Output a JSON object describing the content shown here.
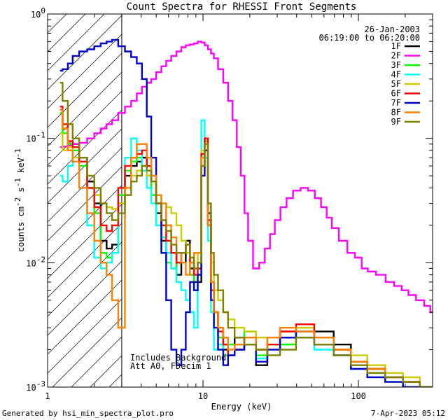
{
  "chart_data": {
    "type": "line",
    "title": "Count Spectra for RHESSI Front Segments",
    "xlabel": "Energy (keV)",
    "ylabel": "counts cm",
    "ylabel_sup1": "-2",
    "ylabel_mid": " s",
    "ylabel_sup2": "-1",
    "ylabel_end": " keV",
    "ylabel_sup3": "-1",
    "x_scale": "log",
    "y_scale": "log",
    "xlim": [
      1.0,
      300.0
    ],
    "ylim": [
      0.001,
      1.0
    ],
    "x_ticks": [
      {
        "value": 1,
        "label": "1"
      },
      {
        "value": 10,
        "label": "10"
      },
      {
        "value": 100,
        "label": "100"
      }
    ],
    "y_ticks": [
      {
        "value": 1.0,
        "base": "10",
        "exp": "0"
      },
      {
        "value": 0.1,
        "base": "10",
        "exp": "-1"
      },
      {
        "value": 0.01,
        "base": "10",
        "exp": "-2"
      },
      {
        "value": 0.001,
        "base": "10",
        "exp": "-3"
      }
    ],
    "hatched_region": {
      "x_from": 1.0,
      "x_to": 3.0
    },
    "annotation_date": "26-Jan-2003",
    "annotation_time": "06:19:00 to 06:20:00",
    "notes": [
      "Includes Background",
      "Att A0, FDecim 1"
    ],
    "footer_left": "Generated by hsi_min_spectra_plot.pro",
    "footer_right": "7-Apr-2023 05:12",
    "series": [
      {
        "name": "1F",
        "color": "#000000",
        "x": [
          1.2,
          1.3,
          1.4,
          1.5,
          1.7,
          1.9,
          2.1,
          2.3,
          2.5,
          2.7,
          3.0,
          3.3,
          3.6,
          3.9,
          4.2,
          4.5,
          4.8,
          5.2,
          5.6,
          6.0,
          6.5,
          7.0,
          7.5,
          8.0,
          8.5,
          9.0,
          9.5,
          10.0,
          10.5,
          11.0,
          11.5,
          12.0,
          13.0,
          14.0,
          15.0,
          17.0,
          20.0,
          24.0,
          28.0,
          35.0,
          45.0,
          60.0,
          80.0,
          100.0,
          130.0,
          170.0,
          220.0,
          280.0
        ],
        "y": [
          0.17,
          0.12,
          0.09,
          0.09,
          0.07,
          0.045,
          0.03,
          0.015,
          0.013,
          0.014,
          0.03,
          0.05,
          0.06,
          0.065,
          0.07,
          0.055,
          0.045,
          0.025,
          0.015,
          0.012,
          0.012,
          0.008,
          0.01,
          0.015,
          0.009,
          0.007,
          0.007,
          0.06,
          0.1,
          0.025,
          0.007,
          0.004,
          0.003,
          0.002,
          0.0018,
          0.0025,
          0.0025,
          0.0015,
          0.0022,
          0.0028,
          0.0025,
          0.0028,
          0.0022,
          0.0016,
          0.0014,
          0.0012,
          0.0011,
          0.001
        ]
      },
      {
        "name": "2F",
        "color": "#ff00ff",
        "x": [
          1.2,
          1.3,
          1.4,
          1.5,
          1.7,
          1.9,
          2.1,
          2.3,
          2.5,
          2.7,
          3.0,
          3.3,
          3.6,
          3.9,
          4.2,
          4.5,
          4.8,
          5.2,
          5.6,
          6.0,
          6.5,
          7.0,
          7.5,
          8.0,
          8.5,
          9.0,
          9.5,
          10.0,
          10.5,
          11.0,
          11.5,
          12.0,
          13.0,
          14.0,
          15.0,
          16.0,
          17.0,
          18.0,
          19.0,
          20.0,
          22.0,
          24.0,
          26.0,
          28.0,
          30.0,
          33.0,
          36.0,
          40.0,
          45.0,
          50.0,
          55.0,
          60.0,
          65.0,
          70.0,
          80.0,
          90.0,
          100.0,
          110.0,
          120.0,
          140.0,
          160.0,
          180.0,
          200.0,
          220.0,
          250.0,
          280.0,
          300.0
        ],
        "y": [
          0.085,
          0.086,
          0.088,
          0.09,
          0.092,
          0.1,
          0.11,
          0.12,
          0.13,
          0.14,
          0.16,
          0.18,
          0.2,
          0.23,
          0.26,
          0.28,
          0.3,
          0.34,
          0.38,
          0.42,
          0.46,
          0.5,
          0.54,
          0.56,
          0.57,
          0.58,
          0.6,
          0.59,
          0.56,
          0.52,
          0.48,
          0.44,
          0.36,
          0.28,
          0.2,
          0.14,
          0.085,
          0.05,
          0.025,
          0.015,
          0.009,
          0.01,
          0.013,
          0.017,
          0.022,
          0.028,
          0.033,
          0.038,
          0.04,
          0.038,
          0.033,
          0.028,
          0.023,
          0.019,
          0.015,
          0.012,
          0.011,
          0.009,
          0.0085,
          0.008,
          0.007,
          0.0065,
          0.006,
          0.0055,
          0.005,
          0.0045,
          0.004
        ]
      },
      {
        "name": "3F",
        "color": "#00ff00",
        "x": [
          1.2,
          1.3,
          1.4,
          1.5,
          1.7,
          1.9,
          2.1,
          2.3,
          2.5,
          2.7,
          3.0,
          3.3,
          3.6,
          3.9,
          4.2,
          4.5,
          4.8,
          5.2,
          5.6,
          6.0,
          6.5,
          7.0,
          7.5,
          8.0,
          8.5,
          9.0,
          9.5,
          10.0,
          10.5,
          11.0,
          11.5,
          12.0,
          13.0,
          14.0,
          15.0,
          17.0,
          20.0,
          24.0,
          28.0,
          35.0,
          45.0,
          60.0,
          80.0,
          100.0,
          130.0,
          170.0,
          220.0,
          280.0
        ],
        "y": [
          0.16,
          0.11,
          0.09,
          0.08,
          0.06,
          0.04,
          0.025,
          0.012,
          0.011,
          0.012,
          0.035,
          0.055,
          0.065,
          0.07,
          0.06,
          0.05,
          0.035,
          0.02,
          0.012,
          0.01,
          0.009,
          0.01,
          0.012,
          0.012,
          0.008,
          0.006,
          0.008,
          0.07,
          0.095,
          0.02,
          0.006,
          0.003,
          0.0025,
          0.0018,
          0.0022,
          0.0022,
          0.0028,
          0.0018,
          0.0025,
          0.0022,
          0.003,
          0.0025,
          0.0018,
          0.0015,
          0.0013,
          0.0012,
          0.0011,
          0.001
        ]
      },
      {
        "name": "4F",
        "color": "#00ffff",
        "x": [
          1.2,
          1.3,
          1.4,
          1.5,
          1.7,
          1.9,
          2.1,
          2.3,
          2.5,
          2.7,
          3.0,
          3.3,
          3.6,
          3.9,
          4.2,
          4.5,
          4.8,
          5.2,
          5.6,
          6.0,
          6.5,
          7.0,
          7.5,
          8.0,
          8.5,
          9.0,
          9.5,
          10.0,
          10.5,
          11.0,
          11.5,
          12.0,
          13.0,
          14.0,
          15.0,
          17.0,
          20.0,
          24.0,
          28.0,
          35.0,
          45.0,
          60.0,
          80.0,
          100.0,
          130.0,
          170.0,
          220.0,
          280.0
        ],
        "y": [
          0.05,
          0.045,
          0.06,
          0.065,
          0.04,
          0.02,
          0.011,
          0.009,
          0.01,
          0.012,
          0.04,
          0.07,
          0.1,
          0.08,
          0.055,
          0.04,
          0.03,
          0.02,
          0.016,
          0.012,
          0.009,
          0.007,
          0.006,
          0.005,
          0.004,
          0.003,
          0.008,
          0.14,
          0.07,
          0.015,
          0.004,
          0.002,
          0.0022,
          0.0015,
          0.0018,
          0.002,
          0.0025,
          0.0017,
          0.0022,
          0.0025,
          0.0028,
          0.002,
          0.0018,
          0.0014,
          0.0012,
          0.0011,
          0.001,
          0.001
        ]
      },
      {
        "name": "5F",
        "color": "#cccc00",
        "x": [
          1.2,
          1.3,
          1.4,
          1.5,
          1.7,
          1.9,
          2.1,
          2.3,
          2.5,
          2.7,
          3.0,
          3.3,
          3.6,
          3.9,
          4.2,
          4.5,
          4.8,
          5.2,
          5.6,
          6.0,
          6.5,
          7.0,
          7.5,
          8.0,
          8.5,
          9.0,
          9.5,
          10.0,
          10.5,
          11.0,
          11.5,
          12.0,
          13.0,
          14.0,
          15.0,
          17.0,
          20.0,
          24.0,
          28.0,
          35.0,
          45.0,
          60.0,
          80.0,
          100.0,
          130.0,
          170.0,
          220.0,
          280.0
        ],
        "y": [
          0.11,
          0.08,
          0.085,
          0.07,
          0.065,
          0.04,
          0.035,
          0.03,
          0.028,
          0.027,
          0.03,
          0.04,
          0.05,
          0.055,
          0.06,
          0.05,
          0.045,
          0.035,
          0.03,
          0.028,
          0.025,
          0.02,
          0.015,
          0.012,
          0.01,
          0.009,
          0.012,
          0.08,
          0.1,
          0.03,
          0.01,
          0.006,
          0.005,
          0.004,
          0.0035,
          0.003,
          0.0028,
          0.0025,
          0.0022,
          0.0028,
          0.003,
          0.0025,
          0.002,
          0.0018,
          0.0015,
          0.0013,
          0.0012,
          0.001
        ]
      },
      {
        "name": "6F",
        "color": "#ff0000",
        "x": [
          1.2,
          1.3,
          1.4,
          1.5,
          1.7,
          1.9,
          2.1,
          2.3,
          2.5,
          2.7,
          3.0,
          3.3,
          3.6,
          3.9,
          4.2,
          4.5,
          4.8,
          5.2,
          5.6,
          6.0,
          6.5,
          7.0,
          7.5,
          8.0,
          8.5,
          9.0,
          9.5,
          10.0,
          10.5,
          11.0,
          11.5,
          12.0,
          13.0,
          14.0,
          15.0,
          17.0,
          20.0,
          24.0,
          28.0,
          35.0,
          45.0,
          60.0,
          80.0,
          100.0,
          130.0,
          170.0,
          220.0,
          280.0
        ],
        "y": [
          0.18,
          0.13,
          0.095,
          0.085,
          0.065,
          0.04,
          0.028,
          0.02,
          0.018,
          0.02,
          0.04,
          0.06,
          0.07,
          0.075,
          0.08,
          0.06,
          0.045,
          0.03,
          0.02,
          0.015,
          0.012,
          0.01,
          0.012,
          0.014,
          0.01,
          0.008,
          0.009,
          0.075,
          0.1,
          0.022,
          0.006,
          0.004,
          0.0028,
          0.0022,
          0.0018,
          0.002,
          0.0025,
          0.002,
          0.0022,
          0.0028,
          0.0032,
          0.0025,
          0.002,
          0.0016,
          0.0014,
          0.0012,
          0.0011,
          0.001
        ]
      },
      {
        "name": "7F",
        "color": "#0000cc",
        "x": [
          1.2,
          1.3,
          1.4,
          1.5,
          1.7,
          1.9,
          2.1,
          2.3,
          2.5,
          2.7,
          3.0,
          3.3,
          3.6,
          3.9,
          4.2,
          4.5,
          4.8,
          5.2,
          5.6,
          6.0,
          6.5,
          7.0,
          7.5,
          8.0,
          8.5,
          9.0,
          9.5,
          10.0,
          10.5,
          11.0,
          11.5,
          12.0,
          13.0,
          14.0,
          15.0,
          17.0,
          20.0,
          24.0,
          28.0,
          35.0,
          45.0,
          60.0,
          80.0,
          100.0,
          130.0,
          170.0,
          220.0,
          280.0
        ],
        "y": [
          0.35,
          0.36,
          0.4,
          0.46,
          0.5,
          0.52,
          0.55,
          0.58,
          0.6,
          0.62,
          0.55,
          0.5,
          0.45,
          0.4,
          0.3,
          0.15,
          0.07,
          0.03,
          0.012,
          0.005,
          0.002,
          0.0015,
          0.002,
          0.004,
          0.007,
          0.006,
          0.008,
          0.05,
          0.08,
          0.02,
          0.005,
          0.003,
          0.002,
          0.0015,
          0.0018,
          0.002,
          0.0022,
          0.0016,
          0.002,
          0.0025,
          0.0028,
          0.0022,
          0.0018,
          0.0014,
          0.0012,
          0.0011,
          0.001,
          0.001
        ]
      },
      {
        "name": "8F",
        "color": "#ff8000",
        "x": [
          1.2,
          1.3,
          1.4,
          1.5,
          1.7,
          1.9,
          2.1,
          2.3,
          2.5,
          2.7,
          3.0,
          3.3,
          3.6,
          3.9,
          4.2,
          4.5,
          4.8,
          5.2,
          5.6,
          6.0,
          6.5,
          7.0,
          7.5,
          8.0,
          8.5,
          9.0,
          9.5,
          10.0,
          10.5,
          11.0,
          11.5,
          12.0,
          13.0,
          14.0,
          15.0,
          17.0,
          20.0,
          24.0,
          28.0,
          35.0,
          45.0,
          60.0,
          80.0,
          100.0,
          130.0,
          170.0,
          220.0,
          280.0
        ],
        "y": [
          0.17,
          0.12,
          0.08,
          0.065,
          0.04,
          0.025,
          0.015,
          0.01,
          0.008,
          0.005,
          0.003,
          0.04,
          0.07,
          0.09,
          0.09,
          0.07,
          0.05,
          0.035,
          0.03,
          0.02,
          0.016,
          0.012,
          0.01,
          0.008,
          0.01,
          0.012,
          0.012,
          0.07,
          0.09,
          0.02,
          0.007,
          0.004,
          0.003,
          0.0025,
          0.002,
          0.0022,
          0.0025,
          0.002,
          0.0025,
          0.003,
          0.0028,
          0.0025,
          0.002,
          0.0016,
          0.0014,
          0.0012,
          0.0011,
          0.001
        ]
      },
      {
        "name": "9F",
        "color": "#808000",
        "x": [
          1.2,
          1.3,
          1.4,
          1.5,
          1.7,
          1.9,
          2.1,
          2.3,
          2.5,
          2.7,
          3.0,
          3.3,
          3.6,
          3.9,
          4.2,
          4.5,
          4.8,
          5.2,
          5.6,
          6.0,
          6.5,
          7.0,
          7.5,
          8.0,
          8.5,
          9.0,
          9.5,
          10.0,
          10.5,
          11.0,
          11.5,
          12.0,
          13.0,
          14.0,
          15.0,
          17.0,
          20.0,
          24.0,
          28.0,
          35.0,
          45.0,
          60.0,
          80.0,
          100.0,
          130.0,
          170.0,
          220.0,
          280.0
        ],
        "y": [
          0.28,
          0.2,
          0.13,
          0.1,
          0.07,
          0.05,
          0.04,
          0.03,
          0.025,
          0.022,
          0.025,
          0.035,
          0.045,
          0.05,
          0.06,
          0.055,
          0.045,
          0.03,
          0.022,
          0.018,
          0.014,
          0.012,
          0.012,
          0.014,
          0.011,
          0.009,
          0.01,
          0.06,
          0.09,
          0.03,
          0.012,
          0.008,
          0.006,
          0.004,
          0.003,
          0.0025,
          0.0022,
          0.002,
          0.0018,
          0.002,
          0.0025,
          0.0022,
          0.0018,
          0.0015,
          0.0013,
          0.0012,
          0.0011,
          0.001
        ]
      }
    ]
  }
}
